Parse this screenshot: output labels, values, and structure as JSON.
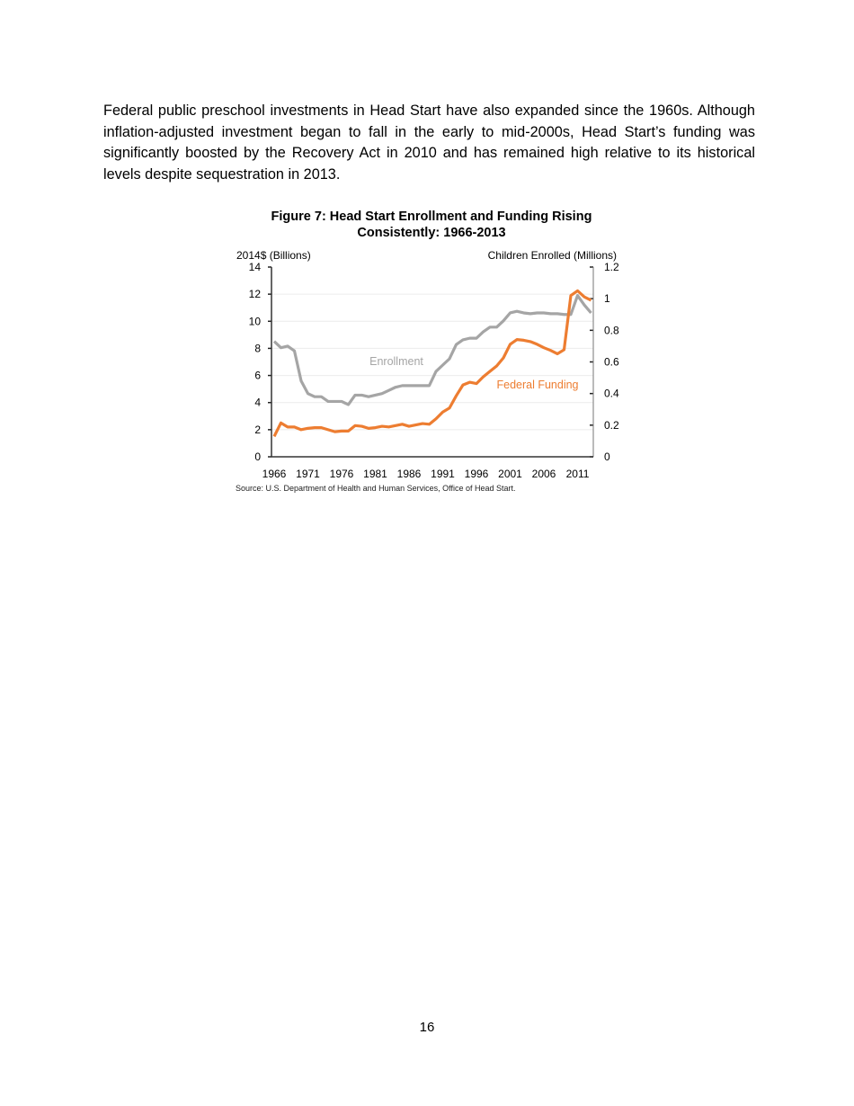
{
  "body_text": "Federal public preschool investments in Head Start have also expanded since the 1960s. Although inflation-adjusted investment began to fall in the early to mid-2000s, Head Start’s funding was significantly boosted by the Recovery Act in 2010 and has remained high relative to its historical levels despite sequestration in 2013.",
  "page_number": "16",
  "chart_data": {
    "type": "line",
    "title_line1": "Figure 7: Head Start Enrollment and Funding Rising",
    "title_line2": "Consistently: 1966-2013",
    "ylabel_left": "2014$ (Billions)",
    "ylabel_right": "Children Enrolled (Millions)",
    "ylim_left": [
      0,
      14
    ],
    "ylim_right": [
      0,
      1.2
    ],
    "yticks_left": [
      "0",
      "2",
      "4",
      "6",
      "8",
      "10",
      "12",
      "14"
    ],
    "yticks_right": [
      "0",
      "0.2",
      "0.4",
      "0.6",
      "0.8",
      "1",
      "1.2"
    ],
    "xticks": [
      "1966",
      "1971",
      "1976",
      "1981",
      "1986",
      "1991",
      "1996",
      "2001",
      "2006",
      "2011"
    ],
    "grid": true,
    "source": "Source: U.S. Department of Health and Human Services, Office of Head Start.",
    "x": [
      1966,
      1967,
      1968,
      1969,
      1970,
      1971,
      1972,
      1973,
      1974,
      1975,
      1976,
      1977,
      1978,
      1979,
      1980,
      1981,
      1982,
      1983,
      1984,
      1985,
      1986,
      1987,
      1988,
      1989,
      1990,
      1991,
      1992,
      1993,
      1994,
      1995,
      1996,
      1997,
      1998,
      1999,
      2000,
      2001,
      2002,
      2003,
      2004,
      2005,
      2006,
      2007,
      2008,
      2009,
      2010,
      2011,
      2012,
      2013
    ],
    "series": [
      {
        "name": "Enrollment",
        "axis": "right",
        "color": "#a5a5a5",
        "values": [
          0.73,
          0.69,
          0.7,
          0.67,
          0.48,
          0.4,
          0.38,
          0.38,
          0.35,
          0.35,
          0.35,
          0.33,
          0.39,
          0.39,
          0.38,
          0.39,
          0.4,
          0.42,
          0.44,
          0.45,
          0.45,
          0.45,
          0.45,
          0.45,
          0.54,
          0.58,
          0.62,
          0.71,
          0.74,
          0.75,
          0.75,
          0.79,
          0.82,
          0.82,
          0.86,
          0.91,
          0.92,
          0.91,
          0.905,
          0.91,
          0.91,
          0.905,
          0.905,
          0.9,
          0.9,
          1.02,
          0.96,
          0.91
        ]
      },
      {
        "name": "Federal Funding",
        "axis": "left",
        "color": "#ed7d31",
        "values": [
          1.5,
          2.5,
          2.2,
          2.2,
          2.0,
          2.1,
          2.15,
          2.15,
          2.0,
          1.85,
          1.9,
          1.9,
          2.3,
          2.25,
          2.1,
          2.15,
          2.25,
          2.2,
          2.3,
          2.4,
          2.25,
          2.35,
          2.45,
          2.4,
          2.8,
          3.3,
          3.6,
          4.5,
          5.3,
          5.5,
          5.4,
          5.9,
          6.3,
          6.7,
          7.3,
          8.3,
          8.65,
          8.6,
          8.5,
          8.3,
          8.05,
          7.85,
          7.6,
          7.9,
          11.9,
          12.25,
          11.8,
          11.55
        ]
      }
    ]
  }
}
